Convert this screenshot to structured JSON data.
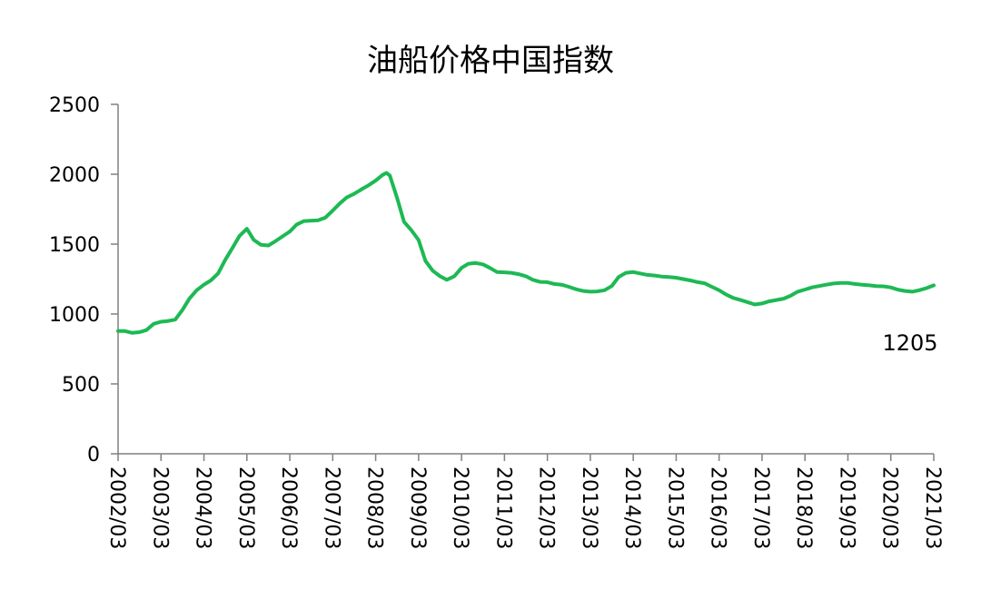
{
  "chart_data": {
    "type": "line",
    "title": "油船价格中国指数",
    "xlabel": "",
    "ylabel": "",
    "ylim": [
      0,
      2500
    ],
    "y_ticks": [
      0,
      500,
      1000,
      1500,
      2000,
      2500
    ],
    "x_ticks": [
      "2002/03",
      "2003/03",
      "2004/03",
      "2005/03",
      "2006/03",
      "2007/03",
      "2008/03",
      "2009/03",
      "2010/03",
      "2011/03",
      "2012/03",
      "2013/03",
      "2014/03",
      "2015/03",
      "2016/03",
      "2017/03",
      "2018/03",
      "2019/03",
      "2020/03",
      "2021/03"
    ],
    "grid": false,
    "legend": "none",
    "line_color": "#1db954",
    "annotation": "1205",
    "series": [
      {
        "x": [
          2002.17,
          2002.33,
          2002.5,
          2002.67,
          2002.83,
          2003.0,
          2003.17,
          2003.33,
          2003.5,
          2003.67,
          2003.83,
          2004.0,
          2004.17,
          2004.33,
          2004.5,
          2004.67,
          2004.83,
          2005.0,
          2005.17,
          2005.25,
          2005.33,
          2005.5,
          2005.67,
          2005.83,
          2006.0,
          2006.17,
          2006.33,
          2006.5,
          2006.67,
          2006.83,
          2007.0,
          2007.17,
          2007.33,
          2007.5,
          2007.67,
          2007.83,
          2008.0,
          2008.17,
          2008.33,
          2008.42,
          2008.5,
          2008.67,
          2008.83,
          2009.0,
          2009.17,
          2009.33,
          2009.5,
          2009.67,
          2009.83,
          2010.0,
          2010.17,
          2010.33,
          2010.5,
          2010.67,
          2010.83,
          2011.0,
          2011.17,
          2011.33,
          2011.5,
          2011.67,
          2011.83,
          2012.0,
          2012.17,
          2012.33,
          2012.5,
          2012.67,
          2012.83,
          2013.0,
          2013.17,
          2013.33,
          2013.5,
          2013.67,
          2013.83,
          2014.0,
          2014.17,
          2014.33,
          2014.5,
          2014.67,
          2014.83,
          2015.0,
          2015.17,
          2015.33,
          2015.5,
          2015.67,
          2015.83,
          2016.0,
          2016.17,
          2016.33,
          2016.5,
          2016.67,
          2016.83,
          2017.0,
          2017.17,
          2017.33,
          2017.5,
          2017.67,
          2017.83,
          2018.0,
          2018.17,
          2018.33,
          2018.5,
          2018.67,
          2018.83,
          2019.0,
          2019.17,
          2019.33,
          2019.5,
          2019.67,
          2019.83,
          2020.0,
          2020.17,
          2020.33,
          2020.5,
          2020.67,
          2020.83,
          2021.0,
          2021.17
        ],
        "y": [
          878,
          878,
          865,
          870,
          885,
          930,
          945,
          950,
          960,
          1030,
          1110,
          1170,
          1210,
          1240,
          1290,
          1390,
          1470,
          1560,
          1610,
          1570,
          1530,
          1495,
          1490,
          1520,
          1555,
          1590,
          1640,
          1665,
          1668,
          1670,
          1690,
          1740,
          1790,
          1835,
          1860,
          1890,
          1920,
          1955,
          1995,
          2010,
          1990,
          1830,
          1660,
          1600,
          1530,
          1380,
          1310,
          1270,
          1245,
          1270,
          1330,
          1360,
          1365,
          1355,
          1330,
          1300,
          1298,
          1295,
          1285,
          1270,
          1245,
          1230,
          1228,
          1215,
          1210,
          1195,
          1178,
          1165,
          1160,
          1162,
          1170,
          1200,
          1265,
          1295,
          1300,
          1290,
          1280,
          1275,
          1268,
          1265,
          1260,
          1250,
          1240,
          1228,
          1220,
          1195,
          1170,
          1140,
          1115,
          1100,
          1085,
          1068,
          1075,
          1090,
          1100,
          1110,
          1130,
          1160,
          1175,
          1190,
          1200,
          1210,
          1218,
          1222,
          1222,
          1215,
          1210,
          1205,
          1200,
          1198,
          1190,
          1175,
          1165,
          1160,
          1170,
          1185,
          1205
        ]
      }
    ]
  }
}
